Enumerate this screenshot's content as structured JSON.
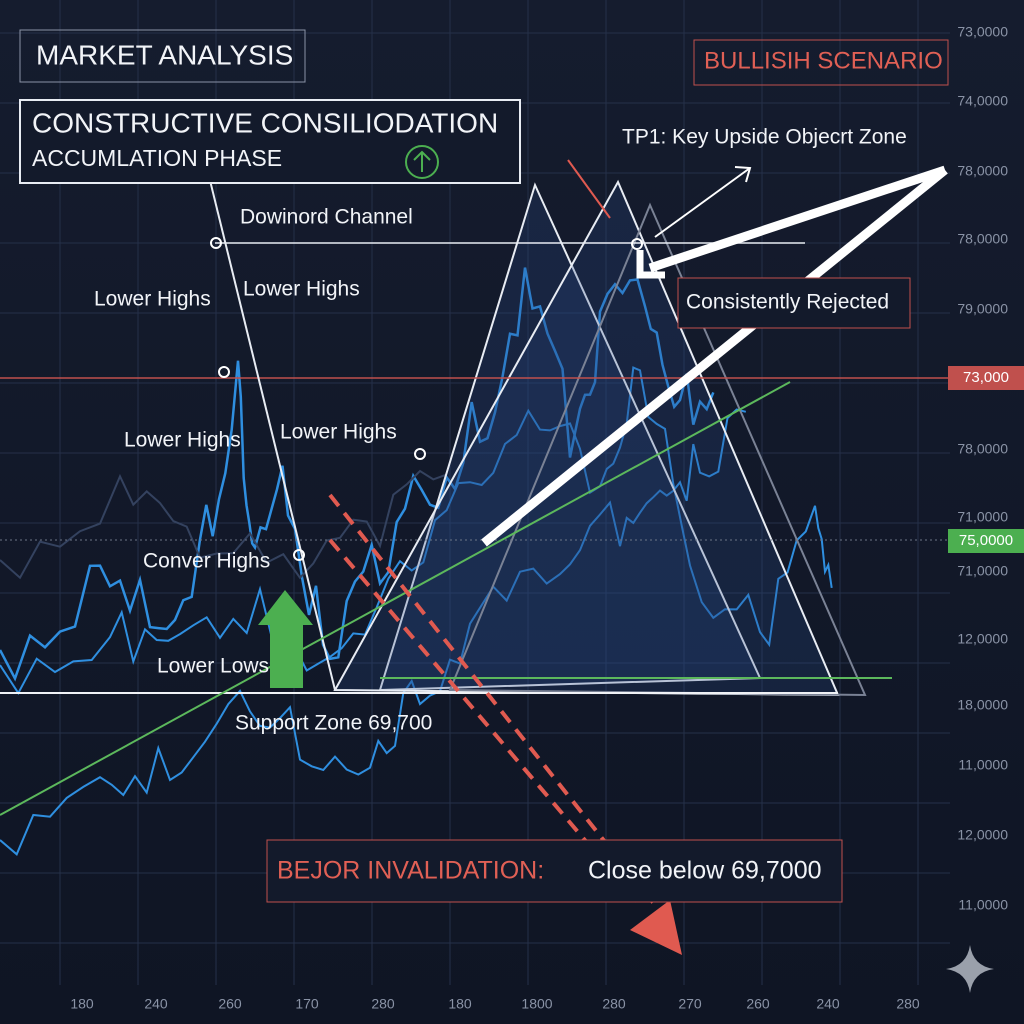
{
  "header": {
    "title": "MARKET ANALYSIS",
    "scenario": "BULLISIH SCENARIO"
  },
  "phase_box": {
    "title": "CONSTRUCTIVE CONSILIODATION",
    "subtitle": "ACCUMLATION PHASE"
  },
  "annotations": [
    "Dowinord Channel",
    "Lower Highs",
    "Lower Highs",
    "Lower Highs",
    "Lower Highs",
    "Conver Highs",
    "Lower Lows",
    "Support Zone 69,700",
    "TP1: Key Upside Objecrt Zone",
    "Consistently Rejected"
  ],
  "invalidation": {
    "label": "BEJOR INVALIDATION:",
    "condition": "Close below 69,7000"
  },
  "y_axis_labels": [
    "73,0000",
    "74,0000",
    "78,0000",
    "78,0000",
    "79,0000",
    "78,0000",
    "71,0000",
    "71,0000",
    "12,0000",
    "18,0000",
    "11,0000",
    "12,0000",
    "11,0000"
  ],
  "price_tags": [
    "73,000",
    "75,0000"
  ],
  "x_axis_labels": [
    "180",
    "240",
    "260",
    "170",
    "280",
    "180",
    "1800",
    "280",
    "270",
    "260",
    "240",
    "280"
  ]
}
